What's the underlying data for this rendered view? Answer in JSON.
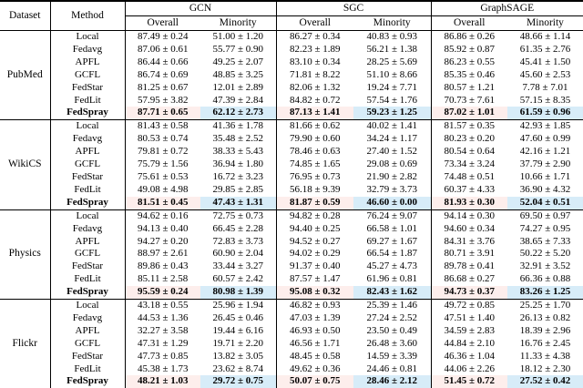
{
  "table": {
    "header": {
      "dataset": "Dataset",
      "method": "Method",
      "groups": [
        "GCN",
        "SGC",
        "GraphSAGE"
      ],
      "sub": [
        "Overall",
        "Minority"
      ]
    },
    "colors": {
      "overall_highlight": "#fdeeec",
      "minority_highlight": "#d7ecf8"
    },
    "chart_data": {
      "type": "table",
      "note": "Values are 'mean ± std' accuracy; columns per model: Overall, Minority"
    },
    "datasets": [
      {
        "name": "PubMed",
        "rows": [
          {
            "method": "Local",
            "highlight": false,
            "values": [
              "87.49 ± 0.24",
              "51.00 ± 1.20",
              "86.27 ± 0.34",
              "40.83 ± 0.93",
              "86.86 ± 0.26",
              "48.66 ± 1.14"
            ]
          },
          {
            "method": "Fedavg",
            "highlight": false,
            "values": [
              "87.06 ± 0.61",
              "55.77 ± 0.90",
              "82.23 ± 1.89",
              "56.21 ± 1.38",
              "85.92 ± 0.87",
              "61.35 ± 2.76"
            ]
          },
          {
            "method": "APFL",
            "highlight": false,
            "values": [
              "86.44 ± 0.66",
              "49.25 ± 2.07",
              "83.10 ± 0.34",
              "28.25 ± 5.69",
              "86.23 ± 0.55",
              "45.41 ± 1.50"
            ]
          },
          {
            "method": "GCFL",
            "highlight": false,
            "values": [
              "86.74 ± 0.69",
              "48.85 ± 3.25",
              "71.81 ± 8.22",
              "51.10 ± 8.66",
              "85.35 ± 0.46",
              "45.60 ± 2.53"
            ]
          },
          {
            "method": "FedStar",
            "highlight": false,
            "values": [
              "81.25 ± 0.67",
              "12.01 ± 2.89",
              "82.06 ± 1.32",
              "19.24 ± 7.71",
              "80.57 ± 1.21",
              "7.78 ± 7.01"
            ]
          },
          {
            "method": "FedLit",
            "highlight": false,
            "values": [
              "57.95 ± 3.82",
              "47.39 ± 2.84",
              "84.82 ± 0.72",
              "57.54 ± 1.76",
              "70.73 ± 7.61",
              "57.15 ± 8.35"
            ]
          },
          {
            "method": "FedSpray",
            "highlight": true,
            "values": [
              "87.71 ± 0.65",
              "62.12 ± 2.73",
              "87.13 ± 1.41",
              "59.23 ± 1.25",
              "87.02 ± 1.01",
              "61.59 ± 0.96"
            ]
          }
        ]
      },
      {
        "name": "WikiCS",
        "rows": [
          {
            "method": "Local",
            "highlight": false,
            "values": [
              "81.43 ± 0.58",
              "41.36 ± 1.78",
              "81.66 ± 0.62",
              "40.02 ± 1.41",
              "81.57 ± 0.35",
              "42.93 ± 1.85"
            ]
          },
          {
            "method": "Fedavg",
            "highlight": false,
            "values": [
              "80.53 ± 0.74",
              "35.48 ± 2.52",
              "79.90 ± 0.60",
              "34.24 ± 1.17",
              "80.23 ± 0.20",
              "47.60 ± 0.99"
            ]
          },
          {
            "method": "APFL",
            "highlight": false,
            "values": [
              "79.81 ± 0.72",
              "38.33 ± 5.43",
              "78.46 ± 0.63",
              "27.40 ± 1.52",
              "80.54 ± 0.64",
              "42.16 ± 1.21"
            ]
          },
          {
            "method": "GCFL",
            "highlight": false,
            "values": [
              "75.79 ± 1.56",
              "36.94 ± 1.80",
              "74.85 ± 1.65",
              "29.08 ± 0.69",
              "73.34 ± 3.24",
              "37.79 ± 2.90"
            ]
          },
          {
            "method": "FedStar",
            "highlight": false,
            "values": [
              "75.61 ± 0.53",
              "16.72 ± 3.23",
              "76.95 ± 0.73",
              "21.90 ± 2.82",
              "74.48 ± 0.51",
              "10.66 ± 1.71"
            ]
          },
          {
            "method": "FedLit",
            "highlight": false,
            "values": [
              "49.08 ± 4.98",
              "29.85 ± 2.85",
              "56.18 ± 9.39",
              "32.79 ± 3.73",
              "60.37 ± 4.33",
              "36.90 ± 4.32"
            ]
          },
          {
            "method": "FedSpray",
            "highlight": true,
            "values": [
              "81.51 ± 0.45",
              "47.43 ± 1.31",
              "81.87 ± 0.59",
              "46.60 ± 0.00",
              "81.93 ± 0.30",
              "52.04 ± 0.51"
            ]
          }
        ]
      },
      {
        "name": "Physics",
        "rows": [
          {
            "method": "Local",
            "highlight": false,
            "values": [
              "94.62 ± 0.16",
              "72.75 ± 0.73",
              "94.82 ± 0.28",
              "76.24 ± 9.07",
              "94.14 ± 0.30",
              "69.50 ± 0.97"
            ]
          },
          {
            "method": "Fedavg",
            "highlight": false,
            "values": [
              "94.13 ± 0.40",
              "66.45 ± 2.28",
              "94.40 ± 0.25",
              "66.58 ± 1.01",
              "94.60 ± 0.34",
              "74.27 ± 0.95"
            ]
          },
          {
            "method": "APFL",
            "highlight": false,
            "values": [
              "94.27 ± 0.20",
              "72.83 ± 3.73",
              "94.52 ± 0.27",
              "69.27 ± 1.67",
              "84.31 ± 3.76",
              "38.65 ± 7.33"
            ]
          },
          {
            "method": "GCFL",
            "highlight": false,
            "values": [
              "88.97 ± 2.61",
              "60.90 ± 2.04",
              "94.02 ± 0.29",
              "66.54 ± 1.87",
              "80.71 ± 3.91",
              "50.22 ± 5.20"
            ]
          },
          {
            "method": "FedStar",
            "highlight": false,
            "values": [
              "89.86 ± 0.43",
              "33.44 ± 3.27",
              "91.37 ± 0.40",
              "45.27 ± 4.73",
              "89.78 ± 0.41",
              "32.91 ± 3.52"
            ]
          },
          {
            "method": "FedLit",
            "highlight": false,
            "values": [
              "85.11 ± 2.58",
              "60.57 ± 2.42",
              "87.57 ± 1.47",
              "61.96 ± 0.81",
              "86.68 ± 0.27",
              "66.36 ± 0.88"
            ]
          },
          {
            "method": "FedSpray",
            "highlight": true,
            "values": [
              "95.59 ± 0.24",
              "80.98 ± 1.39",
              "95.08 ± 0.32",
              "82.43 ± 1.62",
              "94.73 ± 0.37",
              "83.26 ± 1.25"
            ]
          }
        ]
      },
      {
        "name": "Flickr",
        "rows": [
          {
            "method": "Local",
            "highlight": false,
            "values": [
              "43.18 ± 0.55",
              "25.96 ± 1.94",
              "46.82 ± 0.93",
              "25.39 ± 1.46",
              "49.72 ± 0.85",
              "25.25 ± 1.70"
            ]
          },
          {
            "method": "Fedavg",
            "highlight": false,
            "values": [
              "44.53 ± 1.36",
              "26.45 ± 0.46",
              "47.03 ± 1.39",
              "27.24 ± 2.52",
              "47.51 ± 1.40",
              "26.13 ± 0.82"
            ]
          },
          {
            "method": "APFL",
            "highlight": false,
            "values": [
              "32.27 ± 3.58",
              "19.44 ± 6.16",
              "46.93 ± 0.50",
              "23.50 ± 0.49",
              "34.59 ± 2.83",
              "18.39 ± 2.96"
            ]
          },
          {
            "method": "GCFL",
            "highlight": false,
            "values": [
              "47.31 ± 1.29",
              "19.71 ± 2.20",
              "46.56 ± 1.71",
              "26.48 ± 3.60",
              "44.84 ± 2.10",
              "16.76 ± 2.45"
            ]
          },
          {
            "method": "FedStar",
            "highlight": false,
            "values": [
              "47.73 ± 0.85",
              "13.82 ± 3.05",
              "48.45 ± 0.58",
              "14.59 ± 3.39",
              "46.36 ± 1.04",
              "11.33 ± 4.38"
            ]
          },
          {
            "method": "FedLit",
            "highlight": false,
            "values": [
              "45.38 ± 1.73",
              "23.62 ± 8.74",
              "49.62 ± 0.36",
              "24.46 ± 0.81",
              "44.06 ± 2.26",
              "18.12 ± 2.30"
            ]
          },
          {
            "method": "FedSpray",
            "highlight": true,
            "values": [
              "48.21 ± 1.03",
              "29.72 ± 0.75",
              "50.07 ± 0.75",
              "28.46 ± 2.12",
              "51.45 ± 0.72",
              "27.52 ± 0.42"
            ]
          }
        ]
      }
    ]
  }
}
